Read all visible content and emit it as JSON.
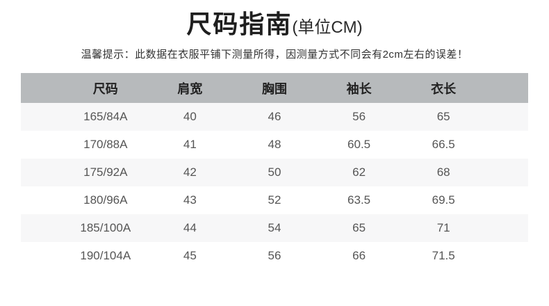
{
  "title": {
    "main": "尺码指南",
    "unit": "(单位CM)"
  },
  "notice": "温馨提示：此数据在衣服平铺下测量所得，因测量方式不同会有2cm左右的误差！",
  "colors": {
    "header_bg": "#b7babc",
    "stripe_bg": "#f7f7f8",
    "title_color": "#1f1f1f",
    "body_text_color": "#555555"
  },
  "chart_data": {
    "type": "table",
    "title": "尺码指南(单位CM)",
    "columns": [
      "尺码",
      "肩宽",
      "胸围",
      "袖长",
      "衣长"
    ],
    "rows": [
      [
        "165/84A",
        "40",
        "46",
        "56",
        "65"
      ],
      [
        "170/88A",
        "41",
        "48",
        "60.5",
        "66.5"
      ],
      [
        "175/92A",
        "42",
        "50",
        "62",
        "68"
      ],
      [
        "180/96A",
        "43",
        "52",
        "63.5",
        "69.5"
      ],
      [
        "185/100A",
        "44",
        "54",
        "65",
        "71"
      ],
      [
        "190/104A",
        "45",
        "56",
        "66",
        "71.5"
      ]
    ],
    "layout": {
      "striped_rows": [
        0,
        2,
        4
      ],
      "column_alignment": "center"
    }
  }
}
